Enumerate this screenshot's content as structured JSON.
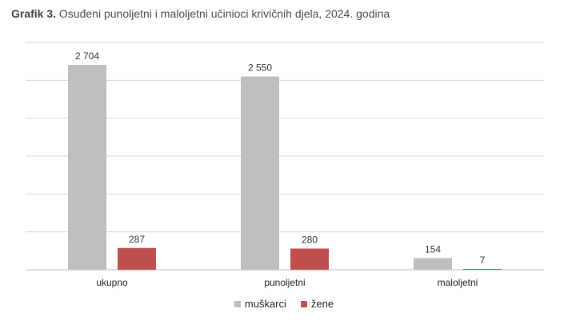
{
  "title": {
    "prefix": "Grafik 3.",
    "text": "Osuđeni punoljetni i maloljetni učinioci krivičnih djela, 2024. godina"
  },
  "colors": {
    "muskarci": "#bfbfbf",
    "zene": "#c0504d",
    "grid": "#d9d9d9"
  },
  "chart_data": {
    "type": "bar",
    "title": "Osuđeni punoljetni i maloljetni učinioci krivičnih djela, 2024. godina",
    "categories": [
      "ukupno",
      "punoljetni",
      "maloljetni"
    ],
    "series": [
      {
        "name": "muškarci",
        "values": [
          2704,
          2550,
          154
        ],
        "labels": [
          "2 704",
          "2 550",
          "154"
        ]
      },
      {
        "name": "žene",
        "values": [
          287,
          280,
          7
        ],
        "labels": [
          "287",
          "280",
          "7"
        ]
      }
    ],
    "ylim": [
      0,
      3000
    ],
    "grid": true,
    "legend": "bottom-center",
    "xlabel": "",
    "ylabel": ""
  }
}
